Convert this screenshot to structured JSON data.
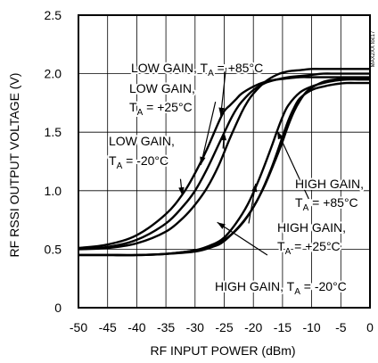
{
  "chart_data": {
    "type": "line",
    "xlabel": "RF INPUT POWER (dBm)",
    "ylabel": "RF RSSI OUTPUT VOLTAGE (V)",
    "xlim": [
      -50,
      0
    ],
    "ylim": [
      0,
      2.5
    ],
    "x_ticks": [
      -50,
      -45,
      -40,
      -35,
      -30,
      -25,
      -20,
      -15,
      -10,
      -5,
      0
    ],
    "y_ticks": [
      0,
      0.5,
      1.0,
      1.5,
      2.0,
      2.5
    ],
    "x_tick_labels": [
      "-50",
      "-45",
      "-40",
      "-35",
      "-30",
      "-25",
      "-20",
      "-15",
      "-10",
      "-5",
      "0"
    ],
    "y_tick_labels": [
      "0",
      "0.5",
      "1.0",
      "1.5",
      "2.0",
      "2.5"
    ],
    "grid": true,
    "side_code": "MAX2XX toc17",
    "series": [
      {
        "x": [
          -50,
          -45,
          -40,
          -35,
          -32,
          -30,
          -28,
          -26,
          -25,
          -24,
          -23,
          -22,
          -20,
          -18,
          -16,
          -14,
          -12,
          -10,
          -8,
          -6,
          -4,
          -2,
          0
        ],
        "values": [
          0.51,
          0.54,
          0.62,
          0.8,
          0.98,
          1.15,
          1.35,
          1.58,
          1.68,
          1.73,
          1.78,
          1.83,
          1.89,
          1.93,
          1.95,
          1.96,
          1.97,
          1.97,
          1.97,
          1.97,
          1.97,
          1.97,
          1.97
        ]
      },
      {
        "x": [
          -50,
          -45,
          -40,
          -35,
          -32,
          -30,
          -28,
          -26,
          -24,
          -23,
          -22,
          -20,
          -18,
          -16,
          -14,
          -12,
          -10,
          -8,
          -6,
          -4,
          -2,
          0
        ],
        "values": [
          0.5,
          0.52,
          0.58,
          0.72,
          0.87,
          1.0,
          1.18,
          1.39,
          1.6,
          1.69,
          1.76,
          1.86,
          1.92,
          1.95,
          1.97,
          1.98,
          1.99,
          2.0,
          2.0,
          2.0,
          2.0,
          2.0
        ]
      },
      {
        "x": [
          -50,
          -45,
          -40,
          -35,
          -32,
          -30,
          -28,
          -26,
          -24,
          -22,
          -21,
          -20,
          -18,
          -16,
          -14,
          -12,
          -10,
          -8,
          -6,
          -4,
          -2,
          0
        ],
        "values": [
          0.5,
          0.51,
          0.55,
          0.65,
          0.77,
          0.88,
          1.02,
          1.21,
          1.45,
          1.67,
          1.76,
          1.83,
          1.93,
          1.99,
          2.02,
          2.03,
          2.04,
          2.04,
          2.04,
          2.04,
          2.04,
          2.04
        ]
      },
      {
        "x": [
          -50,
          -45,
          -40,
          -35,
          -30,
          -27,
          -25,
          -22,
          -20,
          -18,
          -16,
          -15,
          -14,
          -13,
          -12,
          -11,
          -10,
          -8,
          -6,
          -4,
          -2,
          0
        ],
        "values": [
          0.45,
          0.45,
          0.45,
          0.46,
          0.48,
          0.52,
          0.57,
          0.72,
          0.86,
          1.05,
          1.29,
          1.42,
          1.56,
          1.68,
          1.77,
          1.84,
          1.88,
          1.93,
          1.95,
          1.96,
          1.96,
          1.96
        ]
      },
      {
        "x": [
          -50,
          -45,
          -40,
          -35,
          -30,
          -27,
          -25,
          -23,
          -21,
          -19,
          -17,
          -16,
          -15,
          -14,
          -12,
          -10,
          -8,
          -6,
          -4,
          -2,
          0
        ],
        "values": [
          0.45,
          0.45,
          0.45,
          0.46,
          0.49,
          0.54,
          0.6,
          0.72,
          0.88,
          1.1,
          1.36,
          1.5,
          1.63,
          1.73,
          1.84,
          1.89,
          1.92,
          1.94,
          1.95,
          1.95,
          1.95
        ]
      },
      {
        "x": [
          -50,
          -45,
          -40,
          -35,
          -30,
          -27,
          -25,
          -23,
          -21,
          -19,
          -17,
          -15,
          -14,
          -13,
          -12,
          -10,
          -8,
          -6,
          -4,
          -2,
          0
        ],
        "values": [
          0.45,
          0.45,
          0.45,
          0.46,
          0.49,
          0.53,
          0.58,
          0.66,
          0.78,
          0.95,
          1.18,
          1.46,
          1.6,
          1.71,
          1.79,
          1.86,
          1.89,
          1.91,
          1.92,
          1.92,
          1.92
        ]
      }
    ],
    "annotations": [
      {
        "text": "LOW GAIN, T",
        "sub": "A",
        "tail": " = +85°C"
      },
      {
        "text": "LOW GAIN,",
        "sub": "",
        "tail": ""
      },
      {
        "text": "T",
        "sub": "A",
        "tail": " = +25°C"
      },
      {
        "text": "LOW GAIN,",
        "sub": "",
        "tail": ""
      },
      {
        "text": "T",
        "sub": "A",
        "tail": " = -20°C"
      },
      {
        "text": "HIGH GAIN,",
        "sub": "",
        "tail": ""
      },
      {
        "text": "T",
        "sub": "A",
        "tail": " = +85°C"
      },
      {
        "text": "HIGH GAIN,",
        "sub": "",
        "tail": ""
      },
      {
        "text": "T",
        "sub": "A",
        "tail": " = +25°C"
      },
      {
        "text": "HIGH GAIN, T",
        "sub": "A",
        "tail": " = -20°C"
      }
    ]
  }
}
